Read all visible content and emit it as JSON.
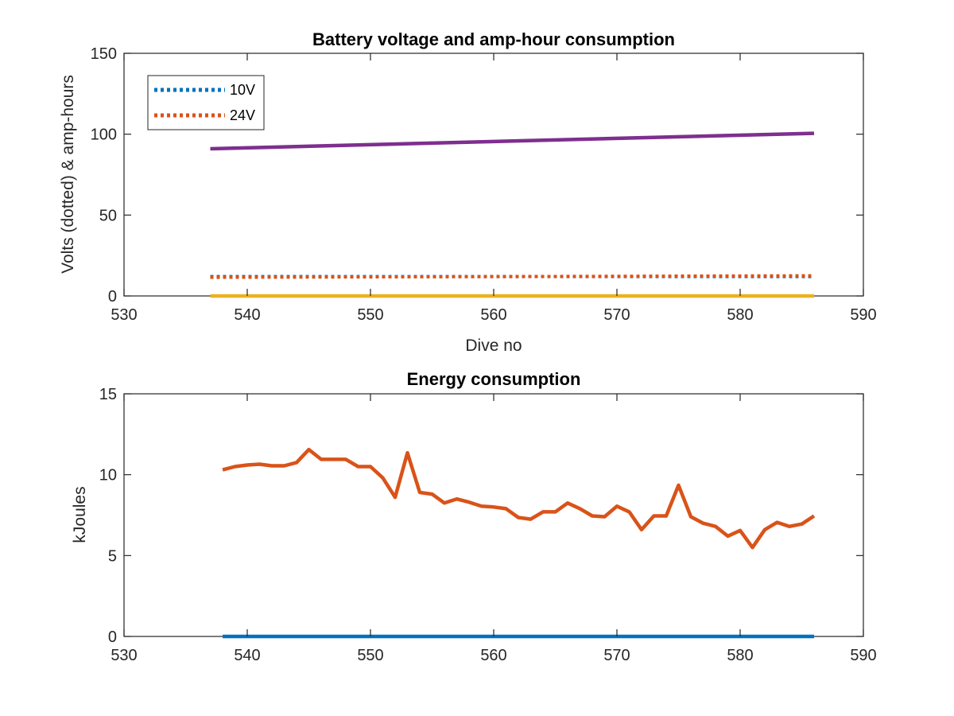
{
  "chart_data": [
    {
      "type": "line",
      "title": "Battery voltage and amp-hour consumption",
      "xlabel": "Dive no",
      "ylabel": "Volts (dotted) & amp-hours",
      "xlim": [
        530,
        590
      ],
      "ylim": [
        0,
        150
      ],
      "xticks": [
        530,
        540,
        550,
        560,
        570,
        580,
        590
      ],
      "yticks": [
        0,
        50,
        100,
        150
      ],
      "grid": false,
      "legend_position": "top-left",
      "series": [
        {
          "name": "10V",
          "style": "dotted",
          "color": "#0072BD",
          "x": [
            537,
            586
          ],
          "y": [
            12,
            12
          ]
        },
        {
          "name": "24V",
          "style": "dotted",
          "color": "#D95319",
          "x": [
            537,
            586
          ],
          "y": [
            11.5,
            12.5
          ]
        },
        {
          "style": "solid",
          "color": "#EDB120",
          "x": [
            537,
            586
          ],
          "y": [
            0,
            0
          ]
        },
        {
          "style": "solid",
          "color": "#7E2F8E",
          "x": [
            537,
            586
          ],
          "y": [
            91,
            100.5
          ]
        }
      ]
    },
    {
      "type": "line",
      "title": "Energy consumption",
      "xlabel": "",
      "ylabel": "kJoules",
      "xlim": [
        530,
        590
      ],
      "ylim": [
        0,
        15
      ],
      "xticks": [
        530,
        540,
        550,
        560,
        570,
        580,
        590
      ],
      "yticks": [
        0,
        5,
        10,
        15
      ],
      "grid": false,
      "series": [
        {
          "style": "solid",
          "color": "#0072BD",
          "x": [
            538,
            586
          ],
          "y": [
            0,
            0
          ]
        },
        {
          "style": "solid",
          "color": "#D95319",
          "x": [
            538,
            539,
            540,
            541,
            542,
            543,
            544,
            545,
            546,
            547,
            548,
            549,
            550,
            551,
            552,
            553,
            554,
            555,
            556,
            557,
            558,
            559,
            560,
            561,
            562,
            563,
            564,
            565,
            566,
            567,
            568,
            569,
            570,
            571,
            572,
            573,
            574,
            575,
            576,
            577,
            578,
            579,
            580,
            581,
            582,
            583,
            584,
            585,
            586
          ],
          "y": [
            10.3,
            10.5,
            10.6,
            10.65,
            10.55,
            10.55,
            10.75,
            11.55,
            10.95,
            10.95,
            10.95,
            10.5,
            10.5,
            9.8,
            8.6,
            11.35,
            8.9,
            8.8,
            8.25,
            8.5,
            8.3,
            8.05,
            8.0,
            7.9,
            7.35,
            7.25,
            7.7,
            7.7,
            8.25,
            7.9,
            7.45,
            7.4,
            8.05,
            7.7,
            6.6,
            7.45,
            7.45,
            9.35,
            7.4,
            7.0,
            6.8,
            6.2,
            6.55,
            5.5,
            6.6,
            7.05,
            6.8,
            6.95,
            7.45
          ]
        }
      ]
    }
  ]
}
